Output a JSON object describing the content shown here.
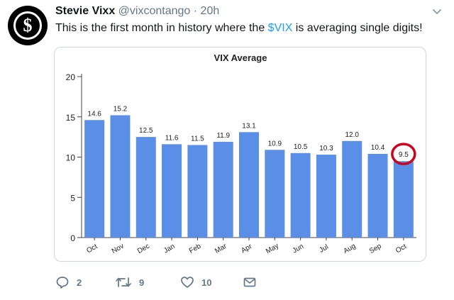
{
  "tweet": {
    "author_name": "Stevie Vixx",
    "handle": "@vixcontango",
    "separator": "·",
    "time": "20h",
    "text_before": "This is the first month in history where the ",
    "cashtag": "$VIX",
    "text_after": " is averaging single digits!",
    "avatar_symbol": "$"
  },
  "actions": {
    "replies": "2",
    "retweets": "9",
    "likes": "10"
  },
  "icons": {
    "avatar": "dollar-coin-icon",
    "menu": "chevron-down-icon",
    "reply": "reply-icon",
    "retweet": "retweet-icon",
    "like": "heart-icon",
    "dm": "envelope-icon"
  },
  "colors": {
    "bar": "#5b8ee6",
    "highlight": "#d0021b",
    "link": "#1da1f2",
    "muted": "#657786"
  },
  "chart_data": {
    "type": "bar",
    "title": "VIX Average",
    "xlabel": "",
    "ylabel": "",
    "ylim": [
      0,
      20
    ],
    "yticks": [
      0,
      5,
      10,
      15,
      20
    ],
    "grid": false,
    "categories": [
      "Oct",
      "Nov",
      "Dec",
      "Jan",
      "Feb",
      "Mar",
      "Apr",
      "May",
      "Jun",
      "Jul",
      "Aug",
      "Sep",
      "Oct"
    ],
    "values": [
      14.6,
      15.2,
      12.5,
      11.6,
      11.5,
      11.9,
      13.1,
      10.9,
      10.5,
      10.3,
      12.0,
      10.4,
      9.5
    ],
    "labels": [
      "14.6",
      "15.2",
      "12.5",
      "11.6",
      "11.5",
      "11.9",
      "13.1",
      "10.9",
      "10.5",
      "10.3",
      "12.0",
      "10.4",
      "9.5"
    ],
    "highlighted_index": 12
  }
}
